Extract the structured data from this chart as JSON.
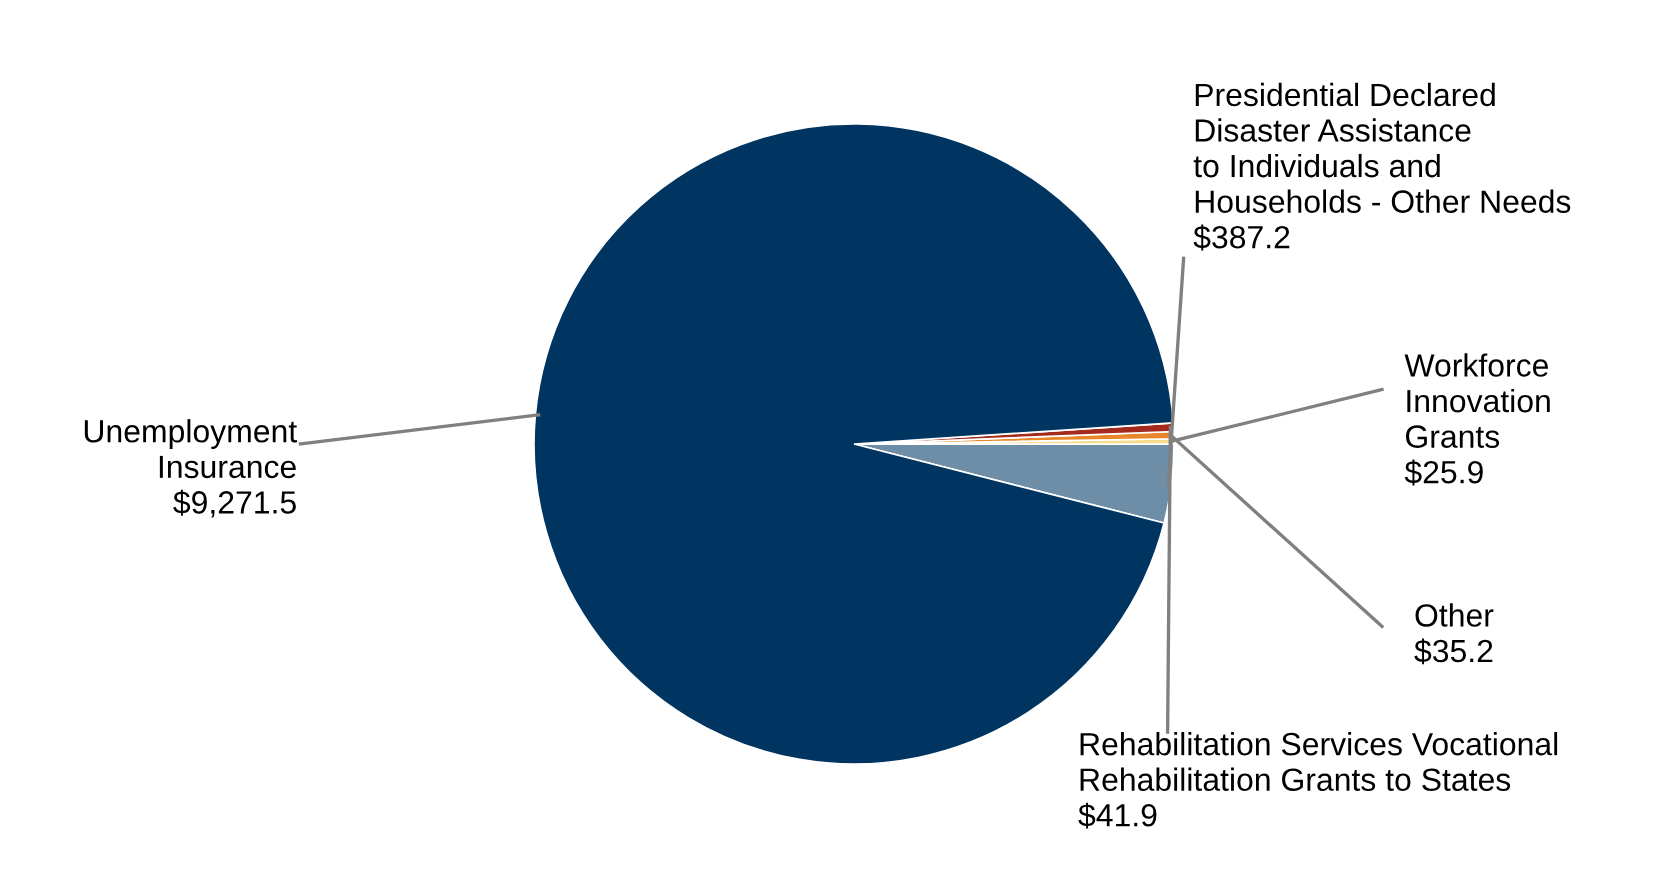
{
  "chart_data": {
    "type": "pie",
    "categories": [
      "Presidential Declared\nDisaster Assistance\nto Individuals and\nHouseholds - Other Needs",
      "Workforce\nInnovation\nGrants",
      "Other",
      "Rehabilitation Services Vocational\nRehabilitation Grants to States",
      "Unemployment\nInsurance"
    ],
    "values": [
      387.2,
      25.9,
      35.2,
      41.9,
      9271.5
    ],
    "colors": [
      "#6e8ea8",
      "#f6dc8c",
      "#e9862a",
      "#a52a1e",
      "#003562"
    ],
    "value_labels": [
      "$387.2",
      "$25.9",
      "$35.2",
      "$41.9",
      "$9,271.5"
    ],
    "legend": false
  }
}
